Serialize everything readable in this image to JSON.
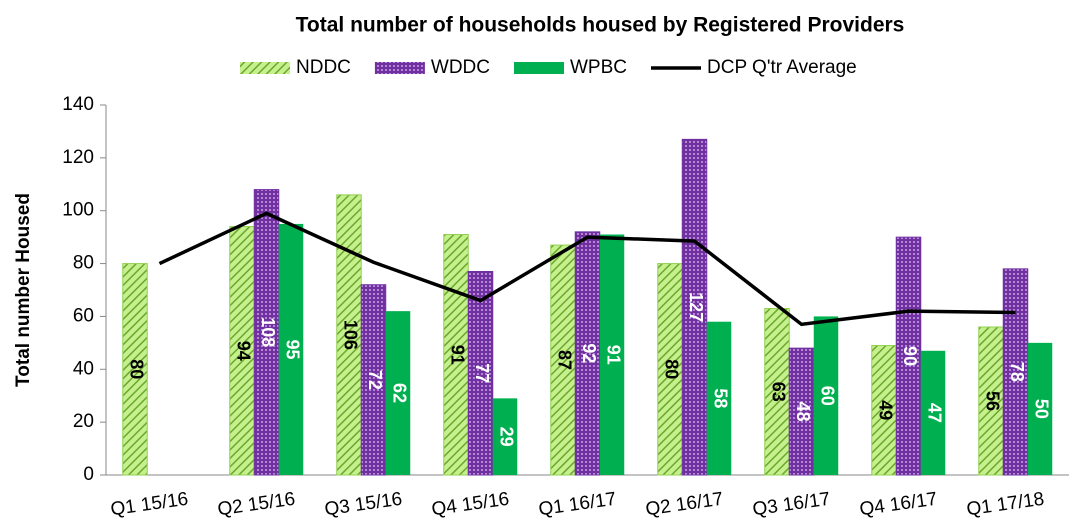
{
  "chart_data": {
    "type": "bar",
    "title": "Total number of households housed by Registered Providers",
    "y_label": "Total number Housed",
    "categories": [
      "Q1 15/16",
      "Q2 15/16",
      "Q3 15/16",
      "Q4 15/16",
      "Q1 16/17",
      "Q2 16/17",
      "Q3 16/17",
      "Q4 16/17",
      "Q1 17/18"
    ],
    "series": [
      {
        "name": "NDDC",
        "color": "#92d050",
        "values": [
          80,
          94,
          106,
          91,
          87,
          80,
          63,
          49,
          56
        ]
      },
      {
        "name": "WDDC",
        "color": "#7030a0",
        "values": [
          null,
          108,
          72,
          77,
          92,
          127,
          48,
          90,
          78
        ]
      },
      {
        "name": "WPBC",
        "color": "#00b050",
        "values": [
          null,
          95,
          62,
          29,
          91,
          58,
          60,
          47,
          50
        ]
      },
      {
        "name": "DCP Q'tr Average",
        "type": "line",
        "color": "#000000",
        "values": [
          80,
          99,
          80.5,
          66,
          90,
          88.5,
          57,
          62,
          61.5
        ]
      }
    ],
    "ylim": [
      0,
      140
    ],
    "yticks": [
      0,
      20,
      40,
      60,
      80,
      100,
      120,
      140
    ],
    "grid": false,
    "legend": "top"
  }
}
